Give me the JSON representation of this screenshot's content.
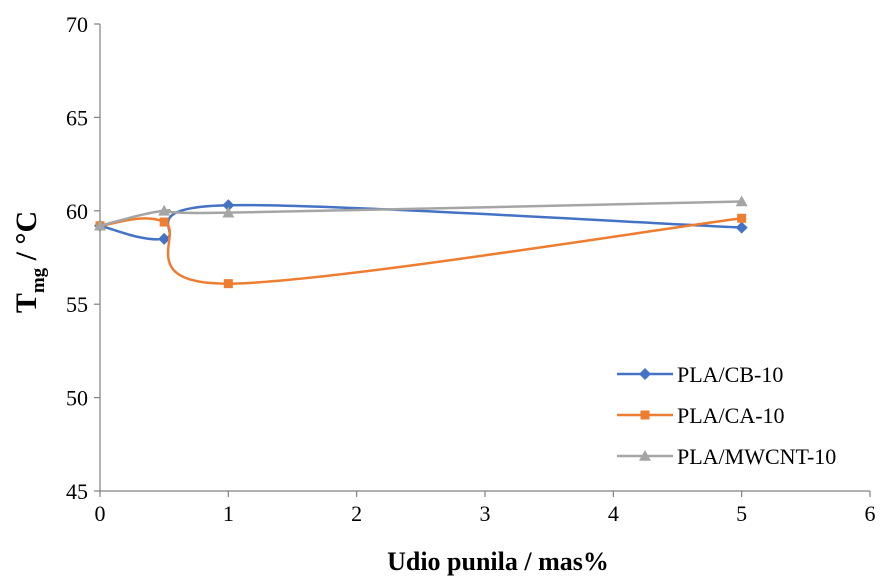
{
  "chart_data": {
    "type": "line",
    "smooth": true,
    "xlabel": "Udio punila / mas%",
    "ylabel": {
      "main": "T",
      "sub": "mg",
      "rest": " / °C"
    },
    "xlim": [
      0,
      6
    ],
    "ylim": [
      45,
      70
    ],
    "xticks": [
      0,
      1,
      2,
      3,
      4,
      5,
      6
    ],
    "yticks": [
      45,
      50,
      55,
      60,
      65,
      70
    ],
    "grid": false,
    "legend_position": "bottom-right",
    "series": [
      {
        "name": "PLA/CB-10",
        "color": "#4472C4",
        "marker": "diamond",
        "x": [
          0,
          0.5,
          1,
          5
        ],
        "y": [
          59.2,
          58.5,
          60.3,
          59.1
        ]
      },
      {
        "name": "PLA/CA-10",
        "color": "#ED7D31",
        "marker": "square",
        "x": [
          0,
          0.5,
          1,
          5
        ],
        "y": [
          59.2,
          59.4,
          56.1,
          59.6
        ]
      },
      {
        "name": "PLA/MWCNT-10",
        "color": "#A5A5A5",
        "marker": "triangle",
        "x": [
          0,
          0.5,
          1,
          5
        ],
        "y": [
          59.2,
          60.0,
          59.9,
          60.5
        ]
      }
    ]
  }
}
